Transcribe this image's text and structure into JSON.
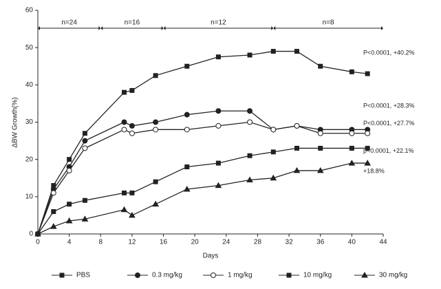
{
  "chart_data": {
    "type": "line",
    "y_label": "ΔBW Growth(%)",
    "x_label": "Days",
    "xlim": [
      0,
      44
    ],
    "xticks": [
      0,
      4,
      8,
      12,
      16,
      20,
      24,
      28,
      32,
      36,
      40,
      44
    ],
    "ylim": [
      0,
      60
    ],
    "yticks": [
      0,
      10,
      20,
      30,
      40,
      50,
      60
    ],
    "x": [
      0,
      2,
      4,
      6,
      11,
      12,
      15,
      19,
      23,
      27,
      30,
      33,
      36,
      40,
      42
    ],
    "series": [
      {
        "name": "PBS",
        "color": "#222",
        "marker": "square",
        "label": "P<0.0001, +40.2%",
        "values": [
          0,
          13,
          20,
          27,
          38,
          38.5,
          42.5,
          45,
          47.5,
          48,
          49,
          49,
          45,
          43.5,
          43
        ]
      },
      {
        "name": "0.3 mg/kg",
        "color": "#222",
        "marker": "circle",
        "label": "P<0.0001, +28.3%",
        "values": [
          0,
          12,
          18,
          25,
          30,
          29,
          30,
          32,
          33,
          33,
          28,
          29,
          28,
          28,
          28
        ]
      },
      {
        "name": "1 mg/kg",
        "color": "#222",
        "marker": "open-circle",
        "label": "P<0.0001, +27.7%",
        "values": [
          0,
          11,
          17,
          23,
          28,
          27,
          28,
          28,
          29,
          30,
          28,
          29,
          27,
          27,
          27
        ]
      },
      {
        "name": "10 mg/kg",
        "color": "#222",
        "marker": "square",
        "label": "p<0.0001, +22.1%",
        "values": [
          0,
          6,
          8,
          9,
          11,
          11,
          14,
          18,
          19,
          21,
          22,
          23,
          23,
          23,
          23
        ]
      },
      {
        "name": "30 mg/kg",
        "color": "#222",
        "marker": "triangle",
        "label": "+18.8%",
        "values": [
          0,
          2,
          3.5,
          4,
          6.5,
          5,
          8,
          12,
          13,
          14.5,
          15,
          17,
          17,
          19,
          19
        ]
      }
    ],
    "segments": [
      {
        "label": "n=24",
        "from": 0,
        "to": 8
      },
      {
        "label": "n=16",
        "from": 8,
        "to": 16
      },
      {
        "label": "n=12",
        "from": 16,
        "to": 30
      },
      {
        "label": "n=8",
        "from": 30,
        "to": 44
      }
    ]
  }
}
